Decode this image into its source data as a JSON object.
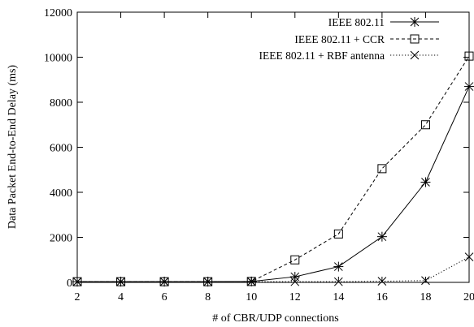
{
  "chart_data": {
    "type": "line",
    "title": "",
    "xlabel": "# of CBR/UDP connections",
    "ylabel": "Data Packet End-to-End Delay (ms)",
    "xlim": [
      2,
      20
    ],
    "ylim": [
      0,
      12000
    ],
    "xticks": [
      2,
      4,
      6,
      8,
      10,
      12,
      14,
      16,
      18,
      20
    ],
    "yticks": [
      0,
      2000,
      4000,
      6000,
      8000,
      10000,
      12000
    ],
    "grid": false,
    "legend_position": "top-right",
    "x": [
      2,
      4,
      6,
      8,
      10,
      12,
      14,
      16,
      18,
      20
    ],
    "series": [
      {
        "name": "IEEE 802.11",
        "marker": "asterisk",
        "line_style": "solid",
        "values": [
          30,
          30,
          30,
          30,
          40,
          250,
          700,
          2030,
          4450,
          8700
        ]
      },
      {
        "name": "IEEE 802.11 + CCR",
        "marker": "square",
        "line_style": "dashed",
        "values": [
          30,
          30,
          30,
          30,
          40,
          1000,
          2150,
          5050,
          7000,
          10050
        ]
      },
      {
        "name": "IEEE 802.11 + RBF antenna",
        "marker": "x",
        "line_style": "dotted",
        "values": [
          30,
          30,
          30,
          30,
          30,
          30,
          30,
          50,
          80,
          1130
        ]
      }
    ]
  }
}
